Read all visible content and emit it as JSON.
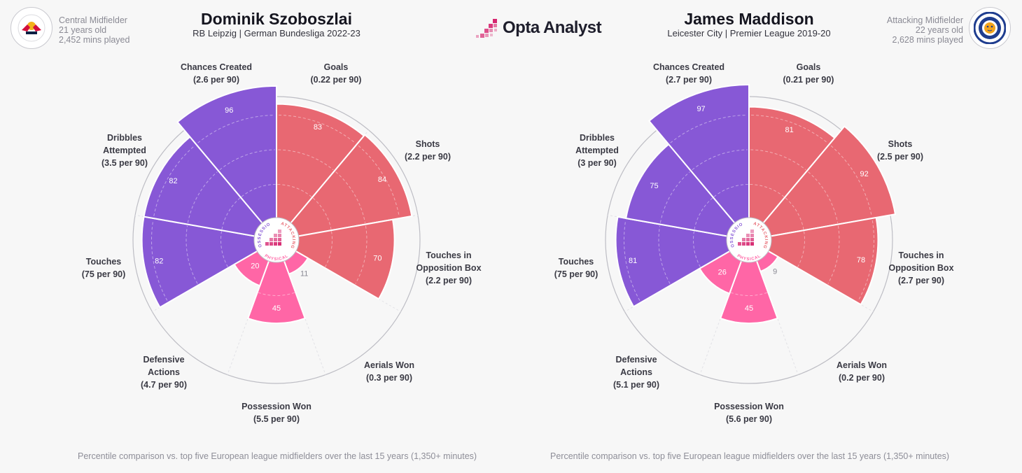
{
  "brand": {
    "name": "Opta Analyst",
    "accent": "#d6246e"
  },
  "colors": {
    "possession": "#8758d6",
    "attacking": "#e86872",
    "physical": "#ff66a6",
    "ring": "#bdbdc4",
    "spoke": "#e2e2e6"
  },
  "center_labels": {
    "possession": "POSSESSION",
    "attacking": "ATTACKING",
    "physical": "PHYSICAL"
  },
  "players": [
    {
      "name": "Dominik Szoboszlai",
      "subtitle": "RB Leipzig | German Bundesliga 2022-23",
      "club": "rb-leipzig",
      "meta": {
        "position": "Central Midfielder",
        "age": "21 years old",
        "minutes": "2,452 mins played"
      },
      "footnote": "Percentile comparison vs. top five European league midfielders over the last 15 years (1,350+ minutes)",
      "chart_data": {
        "type": "polar-bar",
        "categories": [
          "Goals",
          "Shots",
          "Touches in Opposition Box",
          "Aerials Won",
          "Possession Won",
          "Defensive Actions",
          "Touches",
          "Dribbles Attempted",
          "Chances Created"
        ],
        "category_lines": [
          [
            "Goals",
            "(0.22 per 90)"
          ],
          [
            "Shots",
            "(2.2 per 90)"
          ],
          [
            "Touches in",
            "Opposition Box",
            "(2.2 per 90)"
          ],
          [
            "Aerials Won",
            "(0.3 per 90)"
          ],
          [
            "Possession Won",
            "(5.5 per 90)"
          ],
          [
            "Defensive",
            "Actions",
            "(4.7 per 90)"
          ],
          [
            "Touches",
            "(75 per 90)"
          ],
          [
            "Dribbles",
            "Attempted",
            "(3.5 per 90)"
          ],
          [
            "Chances Created",
            "(2.6 per 90)"
          ]
        ],
        "groups": [
          "attacking",
          "attacking",
          "attacking",
          "physical",
          "physical",
          "physical",
          "possession",
          "possession",
          "possession"
        ],
        "values": [
          83,
          84,
          70,
          11,
          45,
          20,
          82,
          82,
          96
        ],
        "range": [
          0,
          100
        ]
      }
    },
    {
      "name": "James Maddison",
      "subtitle": "Leicester City | Premier League 2019-20",
      "club": "leicester-city",
      "meta": {
        "position": "Attacking Midfielder",
        "age": "22 years old",
        "minutes": "2,628 mins played"
      },
      "footnote": "Percentile comparison vs. top five European league midfielders over the last 15 years (1,350+ minutes)",
      "chart_data": {
        "type": "polar-bar",
        "categories": [
          "Goals",
          "Shots",
          "Touches in Opposition Box",
          "Aerials Won",
          "Possession Won",
          "Defensive Actions",
          "Touches",
          "Dribbles Attempted",
          "Chances Created"
        ],
        "category_lines": [
          [
            "Goals",
            "(0.21 per 90)"
          ],
          [
            "Shots",
            "(2.5 per 90)"
          ],
          [
            "Touches in",
            "Opposition Box",
            "(2.7 per 90)"
          ],
          [
            "Aerials Won",
            "(0.2 per 90)"
          ],
          [
            "Possession Won",
            "(5.6 per 90)"
          ],
          [
            "Defensive",
            "Actions",
            "(5.1 per 90)"
          ],
          [
            "Touches",
            "(75 per 90)"
          ],
          [
            "Dribbles",
            "Attempted",
            "(3 per 90)"
          ],
          [
            "Chances Created",
            "(2.7 per 90)"
          ]
        ],
        "groups": [
          "attacking",
          "attacking",
          "attacking",
          "physical",
          "physical",
          "physical",
          "possession",
          "possession",
          "possession"
        ],
        "values": [
          81,
          92,
          78,
          9,
          45,
          26,
          81,
          75,
          97
        ],
        "range": [
          0,
          100
        ]
      }
    }
  ]
}
